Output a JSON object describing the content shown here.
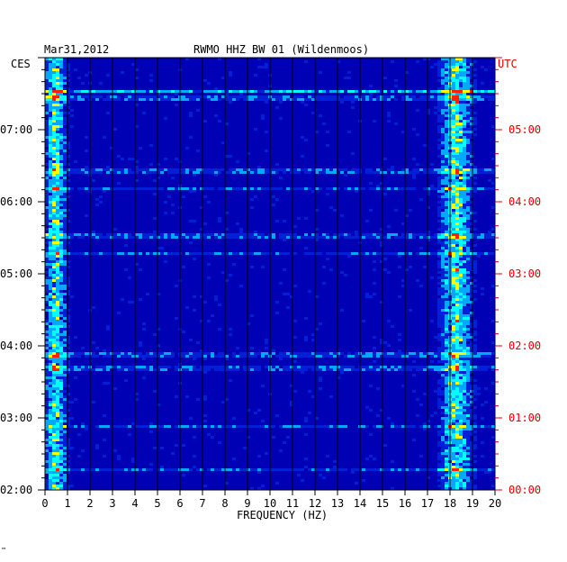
{
  "header": {
    "date": "Mar31,2012",
    "station": "RWMO HHZ BW 01 (Wildenmoos)",
    "left_zone": "CES",
    "right_zone": "UTC"
  },
  "footer_mark": "™",
  "chart_data": {
    "type": "heatmap",
    "title": "RWMO HHZ BW 01 (Wildenmoos)",
    "date": "Mar31,2012",
    "xlabel": "FREQUENCY (HZ)",
    "xlim": [
      0,
      20
    ],
    "x_ticks": [
      "0",
      "1",
      "2",
      "3",
      "4",
      "5",
      "6",
      "7",
      "8",
      "9",
      "10",
      "11",
      "12",
      "13",
      "14",
      "15",
      "16",
      "17",
      "18",
      "19",
      "20"
    ],
    "left_axis_label": "CES",
    "left_time_ticks": [
      "07:00",
      "06:00",
      "05:00",
      "04:00",
      "03:00",
      "02:00"
    ],
    "right_axis_label": "UTC",
    "right_time_ticks": [
      "05:00",
      "04:00",
      "03:00",
      "02:00",
      "01:00",
      "00:00"
    ],
    "time_range_utc_hours": [
      0,
      6
    ],
    "colors": {
      "background": "#0000b4",
      "low": "#0020d8",
      "mid": "#00a8ff",
      "high": "#00ffff",
      "hot": "#ffff00",
      "peak": "#ff2000",
      "right_axis": "#e00000",
      "grid": "#000000"
    },
    "energy_bands": [
      {
        "freq_range_hz": [
          0,
          0.8
        ],
        "intensity": "high",
        "description_label": ""
      },
      {
        "freq_range_hz": [
          17.6,
          18.8
        ],
        "intensity": "high",
        "description_label": ""
      }
    ],
    "horizontal_events_utc_hours": [
      5.55,
      5.45,
      4.45,
      4.2,
      3.55,
      3.3,
      1.9,
      1.7,
      0.9,
      0.3
    ],
    "strong_event_utc_hours": 5.55
  }
}
